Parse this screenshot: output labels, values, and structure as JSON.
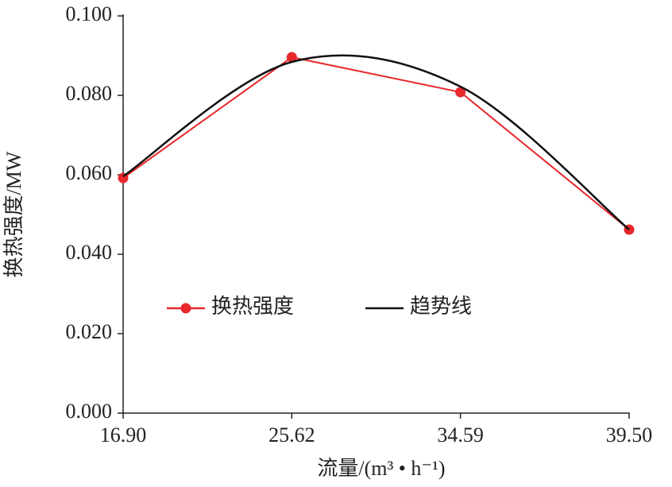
{
  "chart_data": {
    "type": "line",
    "xlabel": "流量/(m³ • h⁻¹)",
    "ylabel": "换热强度/MW",
    "categories": [
      "16.90",
      "25.62",
      "34.59",
      "39.50"
    ],
    "series": [
      {
        "name": "换热强度",
        "color": "#e8282b",
        "marker": true,
        "smooth": false,
        "values": [
          0.0592,
          0.0896,
          0.0808,
          0.0462
        ]
      },
      {
        "name": "趋势线",
        "color": "#111111",
        "marker": false,
        "smooth": true,
        "values": [
          0.0596,
          0.0884,
          0.0822,
          0.0462
        ]
      }
    ],
    "ylim": [
      0,
      0.1
    ],
    "yticks": [
      {
        "value": 0,
        "label": "0.000"
      },
      {
        "value": 0.02,
        "label": "0.020"
      },
      {
        "value": 0.04,
        "label": "0.040"
      },
      {
        "value": 0.06,
        "label": "0.060"
      },
      {
        "value": 0.08,
        "label": "0.080"
      },
      {
        "value": 0.1,
        "label": "0.100"
      }
    ],
    "grid": false,
    "legend": "center-left"
  }
}
